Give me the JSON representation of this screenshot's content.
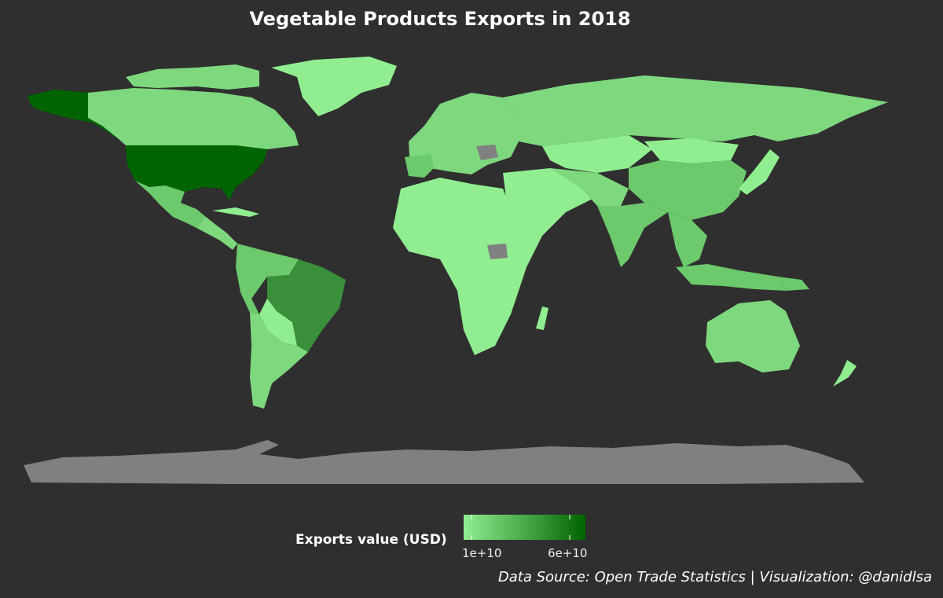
{
  "title": "Vegetable Products Exports in 2018",
  "legend": {
    "title": "Exports value (USD)",
    "ticks": [
      "1e+10",
      "6e+10"
    ],
    "tick_values": [
      10000000000,
      60000000000
    ],
    "color_low": "#90ee90",
    "color_high": "#006400",
    "missing_color": "#808080"
  },
  "caption": "Data Source: Open Trade Statistics | Visualization: @danidlsa",
  "colors": {
    "background": "#2f2f2f",
    "very_high": "#006400",
    "high": "#3a8f3a",
    "mid": "#6cc96c",
    "low": "#7ed87e",
    "very_low": "#90ee90",
    "no_data": "#808080"
  }
}
